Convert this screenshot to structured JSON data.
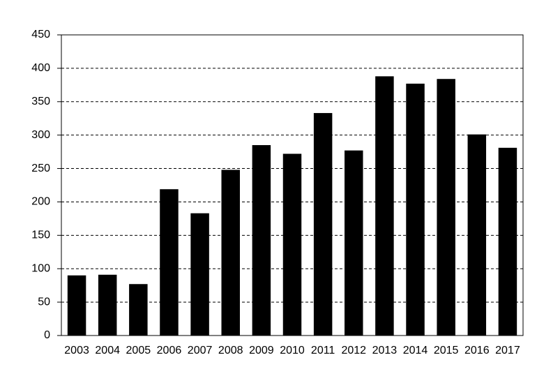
{
  "chart_data": {
    "type": "bar",
    "categories": [
      "2003",
      "2004",
      "2005",
      "2006",
      "2007",
      "2008",
      "2009",
      "2010",
      "2011",
      "2012",
      "2013",
      "2014",
      "2015",
      "2016",
      "2017"
    ],
    "values": [
      90,
      91,
      77,
      219,
      183,
      248,
      285,
      272,
      333,
      277,
      388,
      377,
      384,
      301,
      281
    ],
    "color": "#000000",
    "ylim": [
      0,
      450
    ],
    "yticks": [
      0,
      50,
      100,
      150,
      200,
      250,
      300,
      350,
      400,
      450
    ],
    "grid": true
  }
}
